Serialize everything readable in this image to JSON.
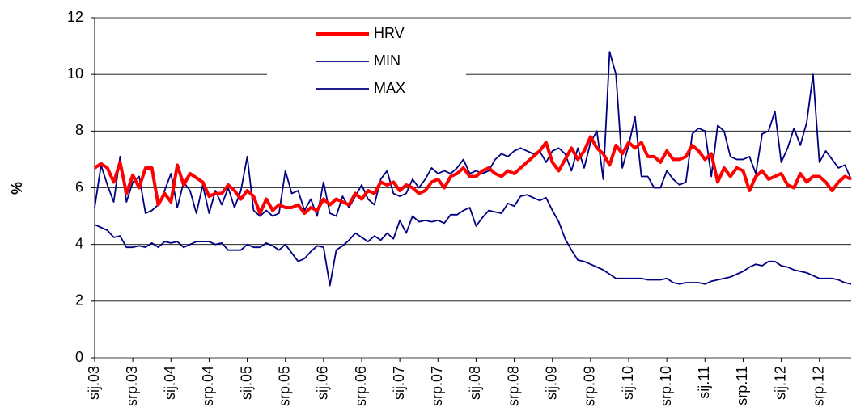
{
  "chart_data": {
    "type": "line",
    "y_label": "%",
    "categories": [
      "sij.03",
      null,
      null,
      null,
      null,
      null,
      "srp.03",
      null,
      null,
      null,
      null,
      null,
      "sij.04",
      null,
      null,
      null,
      null,
      null,
      "srp.04",
      null,
      null,
      null,
      null,
      null,
      "sij.05",
      null,
      null,
      null,
      null,
      null,
      "srp.05",
      null,
      null,
      null,
      null,
      null,
      "sij.06",
      null,
      null,
      null,
      null,
      null,
      "srp.06",
      null,
      null,
      null,
      null,
      null,
      "sij.07",
      null,
      null,
      null,
      null,
      null,
      "srp.07",
      null,
      null,
      null,
      null,
      null,
      "sij.08",
      null,
      null,
      null,
      null,
      null,
      "srp.08",
      null,
      null,
      null,
      null,
      null,
      "sij.09",
      null,
      null,
      null,
      null,
      null,
      "srp.09",
      null,
      null,
      null,
      null,
      null,
      "sij.10",
      null,
      null,
      null,
      null,
      null,
      "srp.10",
      null,
      null,
      null,
      null,
      null,
      "sij.11",
      null,
      null,
      null,
      null,
      null,
      "srp.11",
      null,
      null,
      null,
      null,
      null,
      "sij.12",
      null,
      null,
      null,
      null,
      null,
      "srp.12",
      null,
      null,
      null,
      null,
      null
    ],
    "series": [
      {
        "name": "HRV",
        "color": "#ff0000",
        "width": 4,
        "values": [
          6.7,
          6.85,
          6.7,
          6.2,
          6.9,
          5.8,
          6.45,
          6.0,
          6.7,
          6.7,
          5.4,
          5.8,
          5.5,
          6.8,
          6.1,
          6.5,
          6.35,
          6.2,
          5.7,
          5.8,
          5.8,
          6.1,
          5.9,
          5.6,
          5.9,
          5.7,
          5.1,
          5.6,
          5.2,
          5.4,
          5.3,
          5.3,
          5.4,
          5.1,
          5.3,
          5.2,
          5.6,
          5.4,
          5.6,
          5.5,
          5.4,
          5.8,
          5.6,
          5.9,
          5.8,
          6.2,
          6.1,
          6.2,
          5.9,
          6.1,
          6.0,
          5.8,
          5.9,
          6.2,
          6.3,
          6.0,
          6.4,
          6.5,
          6.7,
          6.4,
          6.4,
          6.6,
          6.7,
          6.5,
          6.4,
          6.6,
          6.5,
          6.7,
          6.9,
          7.1,
          7.3,
          7.6,
          6.9,
          6.6,
          7.0,
          7.4,
          7.0,
          7.3,
          7.8,
          7.4,
          7.2,
          6.8,
          7.5,
          7.2,
          7.6,
          7.4,
          7.6,
          7.1,
          7.1,
          6.9,
          7.3,
          7.0,
          7.0,
          7.1,
          7.5,
          7.3,
          7.0,
          7.2,
          6.2,
          6.7,
          6.4,
          6.7,
          6.6,
          5.9,
          6.4,
          6.6,
          6.3,
          6.4,
          6.5,
          6.1,
          6.0,
          6.5,
          6.2,
          6.4,
          6.4,
          6.2,
          5.9,
          6.2,
          6.4,
          6.3
        ]
      },
      {
        "name": "MIN",
        "color": "#000080",
        "width": 1.8,
        "values": [
          4.7,
          4.6,
          4.5,
          4.25,
          4.3,
          3.9,
          3.9,
          3.95,
          3.9,
          4.05,
          3.9,
          4.1,
          4.05,
          4.1,
          3.9,
          4.0,
          4.1,
          4.1,
          4.1,
          4.0,
          4.05,
          3.8,
          3.8,
          3.8,
          4.0,
          3.9,
          3.9,
          4.05,
          3.95,
          3.8,
          4.0,
          3.7,
          3.4,
          3.5,
          3.75,
          3.95,
          3.9,
          2.55,
          3.8,
          3.95,
          4.15,
          4.4,
          4.25,
          4.1,
          4.3,
          4.15,
          4.4,
          4.2,
          4.85,
          4.4,
          5.0,
          4.8,
          4.85,
          4.8,
          4.85,
          4.75,
          5.05,
          5.05,
          5.2,
          5.3,
          4.65,
          4.95,
          5.2,
          5.15,
          5.1,
          5.45,
          5.35,
          5.7,
          5.75,
          5.65,
          5.55,
          5.65,
          5.2,
          4.8,
          4.2,
          3.8,
          3.45,
          3.4,
          3.3,
          3.2,
          3.1,
          2.95,
          2.8,
          2.8,
          2.8,
          2.8,
          2.8,
          2.75,
          2.75,
          2.75,
          2.8,
          2.65,
          2.6,
          2.65,
          2.65,
          2.65,
          2.6,
          2.7,
          2.75,
          2.8,
          2.85,
          2.95,
          3.05,
          3.2,
          3.3,
          3.25,
          3.4,
          3.4,
          3.25,
          3.2,
          3.1,
          3.05,
          3.0,
          2.9,
          2.8,
          2.8,
          2.8,
          2.75,
          2.65,
          2.6
        ]
      },
      {
        "name": "MAX",
        "color": "#000080",
        "width": 1.8,
        "values": [
          5.3,
          6.8,
          6.1,
          5.5,
          7.1,
          5.5,
          6.2,
          6.4,
          5.1,
          5.2,
          5.4,
          5.9,
          6.5,
          5.3,
          6.2,
          5.9,
          5.1,
          6.1,
          5.1,
          5.9,
          5.4,
          6.0,
          5.3,
          5.9,
          7.1,
          5.2,
          5.0,
          5.2,
          5.0,
          5.1,
          6.6,
          5.8,
          5.9,
          5.2,
          5.6,
          5.0,
          6.2,
          5.1,
          5.0,
          5.7,
          5.3,
          5.7,
          6.1,
          5.6,
          5.4,
          6.3,
          6.6,
          5.8,
          5.7,
          5.8,
          6.3,
          6.0,
          6.3,
          6.7,
          6.5,
          6.6,
          6.5,
          6.7,
          7.0,
          6.5,
          6.6,
          6.5,
          6.6,
          7.0,
          7.2,
          7.1,
          7.3,
          7.4,
          7.3,
          7.2,
          7.3,
          6.9,
          7.3,
          7.4,
          7.2,
          6.6,
          7.4,
          6.7,
          7.6,
          8.0,
          6.3,
          10.8,
          10.0,
          6.7,
          7.5,
          8.5,
          6.4,
          6.4,
          6.0,
          6.0,
          6.6,
          6.3,
          6.1,
          6.2,
          7.9,
          8.1,
          8.0,
          6.4,
          8.2,
          8.0,
          7.1,
          7.0,
          7.0,
          7.1,
          6.5,
          7.9,
          8.0,
          8.7,
          6.9,
          7.4,
          8.1,
          7.5,
          8.3,
          10.0,
          6.9,
          7.3,
          7.0,
          6.7,
          6.8,
          6.3
        ]
      }
    ],
    "ylim": [
      0,
      12
    ],
    "yticks": [
      0,
      2,
      4,
      6,
      8,
      10,
      12
    ],
    "grid": true
  }
}
